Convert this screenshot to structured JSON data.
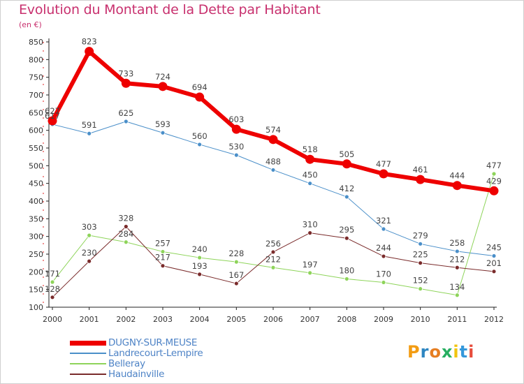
{
  "header": {
    "title": "Evolution du Montant de la Dette par Habitant",
    "unit": "(en €)"
  },
  "logo": {
    "letters": [
      "P",
      "r",
      "o",
      "x",
      "i",
      "t",
      "i"
    ],
    "colors": [
      "#f39c12",
      "#2e86c1",
      "#e67e22",
      "#27ae60",
      "#f1c40f",
      "#3498db",
      "#e74c3c"
    ]
  },
  "chart_data": {
    "type": "line",
    "title": "Evolution du Montant de la Dette par Habitant",
    "ylabel": "(en €)",
    "xlabel": "",
    "x": [
      "2000",
      "2001",
      "2002",
      "2003",
      "2004",
      "2005",
      "2006",
      "2007",
      "2008",
      "2009",
      "2010",
      "2011",
      "2012"
    ],
    "ylim": [
      100,
      850
    ],
    "yticks": [
      100,
      150,
      200,
      250,
      300,
      350,
      400,
      450,
      500,
      550,
      600,
      650,
      700,
      750,
      800,
      850
    ],
    "grid": false,
    "legend_position": "bottom-left",
    "series": [
      {
        "name": "DUGNY-SUR-MEUSE",
        "color": "#ee0000",
        "values": [
          627,
          823,
          733,
          724,
          694,
          603,
          574,
          518,
          505,
          477,
          461,
          444,
          429
        ]
      },
      {
        "name": "Landrecourt-Lempire",
        "color": "#4a8fc9",
        "values": [
          617,
          591,
          625,
          593,
          560,
          530,
          488,
          450,
          412,
          321,
          279,
          258,
          245
        ]
      },
      {
        "name": "Belleray",
        "color": "#8ed45a",
        "values": [
          171,
          303,
          284,
          257,
          240,
          228,
          212,
          197,
          180,
          170,
          152,
          134,
          477
        ]
      },
      {
        "name": "Haudainville",
        "color": "#7a2b2b",
        "values": [
          128,
          230,
          328,
          217,
          193,
          167,
          256,
          310,
          295,
          244,
          225,
          212,
          201
        ]
      }
    ]
  }
}
